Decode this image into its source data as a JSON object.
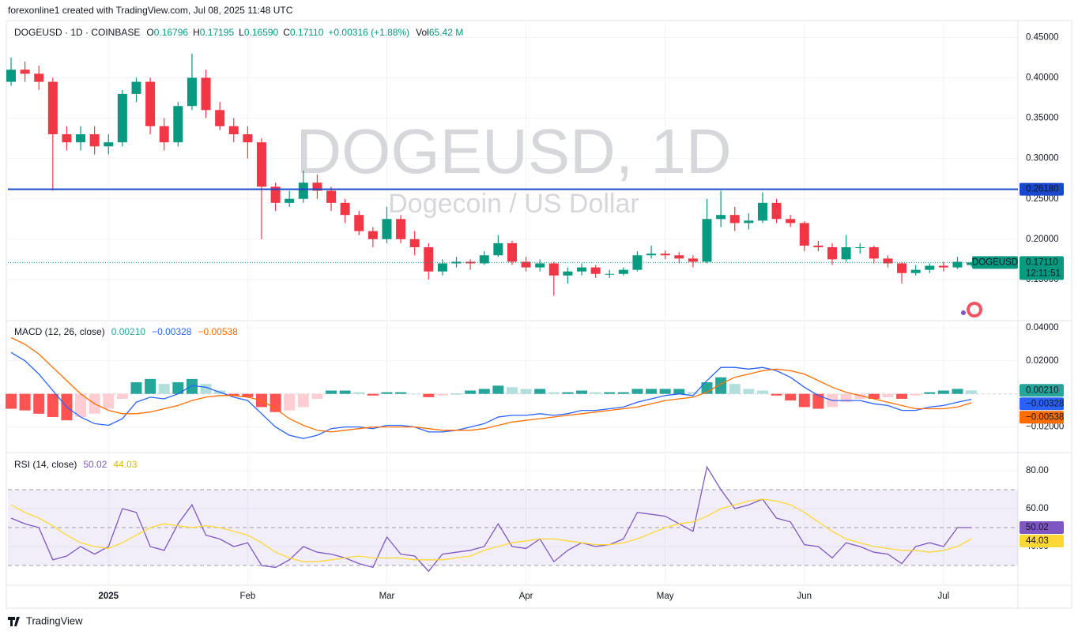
{
  "page": {
    "credit": "forexonline1 created with TradingView.com, Jul 08, 2025 11:48 UTC",
    "brand": "TradingView"
  },
  "chart_data": [
    {
      "type": "candlestick",
      "title": "DOGEUSD, 1D",
      "subtitle": "Dogecoin / US Dollar",
      "header": {
        "symbol": "DOGEUSD · 1D · COINBASE",
        "o_key": "O",
        "open": "0.16796",
        "h_key": "H",
        "high": "0.17195",
        "l_key": "L",
        "low": "0.16590",
        "c_key": "C",
        "close": "0.17110",
        "change": "+0.00316 (+1.88%)",
        "vol_key": "Vol",
        "volume": "65.42 M"
      },
      "categories": [
        null,
        null,
        null,
        null,
        null,
        null,
        null,
        "2025",
        null,
        null,
        null,
        null,
        null,
        null,
        null,
        null,
        null,
        "Feb",
        null,
        null,
        null,
        null,
        null,
        null,
        null,
        null,
        null,
        "Mar",
        null,
        null,
        null,
        null,
        null,
        null,
        null,
        null,
        null,
        "Apr",
        null,
        null,
        null,
        null,
        null,
        null,
        null,
        null,
        null,
        "May",
        null,
        null,
        null,
        null,
        null,
        null,
        null,
        null,
        null,
        "Jun",
        null,
        null,
        null,
        null,
        null,
        null,
        null,
        null,
        null,
        "Jul",
        null,
        null
      ],
      "ohlc": [
        [
          0.395,
          0.425,
          0.39,
          0.41
        ],
        [
          0.41,
          0.42,
          0.395,
          0.405
        ],
        [
          0.405,
          0.415,
          0.385,
          0.395
        ],
        [
          0.395,
          0.4,
          0.26,
          0.33
        ],
        [
          0.33,
          0.34,
          0.31,
          0.32
        ],
        [
          0.32,
          0.34,
          0.31,
          0.33
        ],
        [
          0.33,
          0.34,
          0.305,
          0.315
        ],
        [
          0.315,
          0.33,
          0.305,
          0.32
        ],
        [
          0.32,
          0.385,
          0.315,
          0.38
        ],
        [
          0.38,
          0.4,
          0.37,
          0.395
        ],
        [
          0.395,
          0.4,
          0.33,
          0.34
        ],
        [
          0.34,
          0.35,
          0.31,
          0.32
        ],
        [
          0.32,
          0.37,
          0.315,
          0.365
        ],
        [
          0.365,
          0.43,
          0.36,
          0.4
        ],
        [
          0.4,
          0.41,
          0.35,
          0.36
        ],
        [
          0.36,
          0.37,
          0.335,
          0.34
        ],
        [
          0.34,
          0.35,
          0.32,
          0.33
        ],
        [
          0.33,
          0.34,
          0.3,
          0.32
        ],
        [
          0.32,
          0.325,
          0.2,
          0.265
        ],
        [
          0.265,
          0.27,
          0.235,
          0.245
        ],
        [
          0.245,
          0.26,
          0.24,
          0.25
        ],
        [
          0.25,
          0.285,
          0.245,
          0.27
        ],
        [
          0.27,
          0.28,
          0.25,
          0.26
        ],
        [
          0.26,
          0.265,
          0.235,
          0.245
        ],
        [
          0.245,
          0.25,
          0.22,
          0.23
        ],
        [
          0.23,
          0.235,
          0.205,
          0.21
        ],
        [
          0.21,
          0.215,
          0.19,
          0.2
        ],
        [
          0.2,
          0.24,
          0.195,
          0.225
        ],
        [
          0.225,
          0.23,
          0.195,
          0.2
        ],
        [
          0.2,
          0.21,
          0.18,
          0.19
        ],
        [
          0.19,
          0.195,
          0.15,
          0.16
        ],
        [
          0.16,
          0.175,
          0.155,
          0.17
        ],
        [
          0.17,
          0.178,
          0.165,
          0.172
        ],
        [
          0.172,
          0.175,
          0.162,
          0.17
        ],
        [
          0.17,
          0.185,
          0.168,
          0.18
        ],
        [
          0.18,
          0.205,
          0.178,
          0.195
        ],
        [
          0.195,
          0.198,
          0.168,
          0.172
        ],
        [
          0.172,
          0.178,
          0.16,
          0.165
        ],
        [
          0.165,
          0.175,
          0.16,
          0.17
        ],
        [
          0.17,
          0.172,
          0.13,
          0.155
        ],
        [
          0.155,
          0.165,
          0.145,
          0.16
        ],
        [
          0.16,
          0.17,
          0.155,
          0.165
        ],
        [
          0.165,
          0.168,
          0.152,
          0.157
        ],
        [
          0.157,
          0.162,
          0.152,
          0.157
        ],
        [
          0.157,
          0.165,
          0.155,
          0.162
        ],
        [
          0.162,
          0.185,
          0.16,
          0.18
        ],
        [
          0.18,
          0.192,
          0.176,
          0.182
        ],
        [
          0.182,
          0.186,
          0.175,
          0.18
        ],
        [
          0.18,
          0.184,
          0.17,
          0.176
        ],
        [
          0.176,
          0.18,
          0.165,
          0.172
        ],
        [
          0.172,
          0.25,
          0.17,
          0.225
        ],
        [
          0.225,
          0.26,
          0.215,
          0.23
        ],
        [
          0.23,
          0.24,
          0.21,
          0.22
        ],
        [
          0.22,
          0.232,
          0.212,
          0.223
        ],
        [
          0.223,
          0.258,
          0.22,
          0.245
        ],
        [
          0.245,
          0.25,
          0.22,
          0.225
        ],
        [
          0.225,
          0.23,
          0.215,
          0.22
        ],
        [
          0.22,
          0.222,
          0.185,
          0.192
        ],
        [
          0.192,
          0.198,
          0.185,
          0.19
        ],
        [
          0.19,
          0.195,
          0.168,
          0.175
        ],
        [
          0.175,
          0.205,
          0.172,
          0.19
        ],
        [
          0.19,
          0.195,
          0.182,
          0.19
        ],
        [
          0.19,
          0.192,
          0.17,
          0.176
        ],
        [
          0.176,
          0.18,
          0.165,
          0.17
        ],
        [
          0.17,
          0.172,
          0.145,
          0.158
        ],
        [
          0.158,
          0.168,
          0.155,
          0.162
        ],
        [
          0.162,
          0.17,
          0.158,
          0.167
        ],
        [
          0.167,
          0.172,
          0.16,
          0.165
        ],
        [
          0.165,
          0.178,
          0.163,
          0.172
        ],
        [
          0.16796,
          0.17195,
          0.1659,
          0.1711
        ]
      ],
      "up_color": "#089981",
      "down_color": "#f23645",
      "ylim": [
        0.1,
        0.467
      ],
      "yticks": [
        {
          "value": 0.15,
          "label": "0.15000"
        },
        {
          "value": 0.2,
          "label": "0.20000"
        },
        {
          "value": 0.25,
          "label": "0.25000"
        },
        {
          "value": 0.3,
          "label": "0.30000"
        },
        {
          "value": 0.35,
          "label": "0.35000"
        },
        {
          "value": 0.4,
          "label": "0.40000"
        },
        {
          "value": 0.45,
          "label": "0.45000"
        }
      ],
      "hline": {
        "value": 0.2618,
        "label": "0.26180",
        "color": "#1848cc"
      },
      "last_price": {
        "value": 0.1711,
        "label": "0.17110",
        "symbol": "DOGEUSD",
        "countdown": "12:11:51",
        "color": "#089981"
      },
      "grid": true
    },
    {
      "type": "macd",
      "title": "MACD (12, 26, close)",
      "ylim": [
        -0.035,
        0.0433
      ],
      "yticks": [
        {
          "value": -0.02,
          "label": "−0.02000"
        },
        {
          "value": 0.02,
          "label": "0.02000"
        },
        {
          "value": 0.04,
          "label": "0.04000"
        }
      ],
      "histogram": {
        "colors": [
          "#26a69a",
          "#b2dfdb",
          "#ff5252",
          "#ffcdd2"
        ],
        "last_label": "0.00210",
        "values": [
          -0.009,
          -0.01,
          -0.012,
          -0.014,
          -0.016,
          -0.014,
          -0.012,
          -0.009,
          -0.003,
          0.007,
          0.009,
          0.006,
          0.007,
          0.009,
          0.006,
          0.002,
          -0.001,
          -0.002,
          -0.008,
          -0.011,
          -0.01,
          -0.008,
          -0.003,
          0.002,
          0.002,
          0.001,
          -0.001,
          0.001,
          0.001,
          0.0,
          -0.002,
          -0.001,
          0.0,
          0.002,
          0.003,
          0.005,
          0.004,
          0.003,
          0.003,
          0.001,
          0.001,
          0.002,
          0.001,
          0.001,
          0.001,
          0.003,
          0.003,
          0.003,
          0.003,
          0.001,
          0.007,
          0.01,
          0.006,
          0.003,
          0.002,
          -0.001,
          -0.004,
          -0.008,
          -0.009,
          -0.008,
          -0.005,
          -0.003,
          -0.003,
          -0.002,
          -0.003,
          -0.001,
          0.001,
          0.002,
          0.003,
          0.0021
        ]
      },
      "series": [
        {
          "color": "#2962ff",
          "last_label": "−0.00328",
          "values": [
            0.025,
            0.02,
            0.012,
            0.002,
            -0.008,
            -0.014,
            -0.018,
            -0.019,
            -0.015,
            -0.005,
            -0.002,
            -0.003,
            0.0,
            0.005,
            0.004,
            0.001,
            -0.002,
            -0.004,
            -0.012,
            -0.02,
            -0.025,
            -0.027,
            -0.025,
            -0.021,
            -0.02,
            -0.02,
            -0.021,
            -0.019,
            -0.019,
            -0.02,
            -0.023,
            -0.023,
            -0.022,
            -0.02,
            -0.018,
            -0.014,
            -0.013,
            -0.013,
            -0.012,
            -0.013,
            -0.012,
            -0.01,
            -0.01,
            -0.009,
            -0.008,
            -0.005,
            -0.003,
            -0.001,
            0.0,
            -0.001,
            0.008,
            0.016,
            0.016,
            0.015,
            0.016,
            0.014,
            0.01,
            0.004,
            -0.001,
            -0.004,
            -0.004,
            -0.004,
            -0.006,
            -0.007,
            -0.01,
            -0.01,
            -0.008,
            -0.007,
            -0.005,
            -0.00328
          ]
        },
        {
          "color": "#ff6d00",
          "last_label": "−0.00538",
          "values": [
            0.034,
            0.03,
            0.024,
            0.016,
            0.008,
            0.0,
            -0.006,
            -0.01,
            -0.012,
            -0.012,
            -0.011,
            -0.009,
            -0.007,
            -0.004,
            -0.002,
            -0.001,
            -0.001,
            -0.002,
            -0.004,
            -0.009,
            -0.015,
            -0.019,
            -0.022,
            -0.023,
            -0.022,
            -0.021,
            -0.02,
            -0.02,
            -0.02,
            -0.02,
            -0.021,
            -0.022,
            -0.022,
            -0.022,
            -0.021,
            -0.019,
            -0.017,
            -0.016,
            -0.015,
            -0.014,
            -0.013,
            -0.012,
            -0.011,
            -0.01,
            -0.009,
            -0.008,
            -0.006,
            -0.004,
            -0.003,
            -0.002,
            0.001,
            0.006,
            0.01,
            0.012,
            0.014,
            0.015,
            0.014,
            0.012,
            0.008,
            0.004,
            0.001,
            -0.001,
            -0.003,
            -0.005,
            -0.007,
            -0.009,
            -0.009,
            -0.009,
            -0.008,
            -0.00538
          ]
        }
      ],
      "grid": true
    },
    {
      "type": "rsi",
      "title": "RSI (14, close)",
      "ylim": [
        20,
        88.75
      ],
      "yticks": [
        {
          "value": 40,
          "label": "40.00"
        },
        {
          "value": 60,
          "label": "60.00"
        },
        {
          "value": 80,
          "label": "80.00"
        }
      ],
      "bands": [
        30,
        50,
        70
      ],
      "band_color": "#7e57c2",
      "series": [
        {
          "color": "#7e57c2",
          "last_label": "50.02",
          "values": [
            55,
            52,
            50,
            33,
            35,
            40,
            36,
            40,
            60,
            58,
            40,
            38,
            52,
            62,
            46,
            44,
            40,
            42,
            30,
            29,
            33,
            40,
            37,
            36,
            34,
            31,
            29,
            45,
            36,
            35,
            27,
            36,
            37,
            38,
            40,
            52,
            40,
            39,
            44,
            32,
            38,
            42,
            40,
            41,
            44,
            58,
            57,
            56,
            52,
            48,
            82,
            70,
            60,
            62,
            65,
            55,
            53,
            41,
            40,
            34,
            42,
            40,
            37,
            36,
            31,
            40,
            42,
            40,
            50,
            50.02
          ]
        },
        {
          "color": "#fdd835",
          "last_label": "44.03",
          "values": [
            62,
            58,
            55,
            51,
            46,
            42,
            40,
            39,
            42,
            46,
            50,
            52,
            51,
            50,
            51,
            50,
            48,
            46,
            42,
            37,
            34,
            32,
            32,
            33,
            34,
            35,
            34,
            34,
            34,
            33,
            33,
            33,
            34,
            35,
            38,
            40,
            42,
            43,
            44,
            44,
            43,
            42,
            41,
            41,
            42,
            44,
            47,
            50,
            52,
            53,
            56,
            60,
            62,
            64,
            65,
            64,
            62,
            58,
            53,
            48,
            44,
            42,
            40,
            39,
            38,
            38,
            37,
            38,
            40,
            44.03
          ]
        }
      ],
      "grid": true
    }
  ]
}
